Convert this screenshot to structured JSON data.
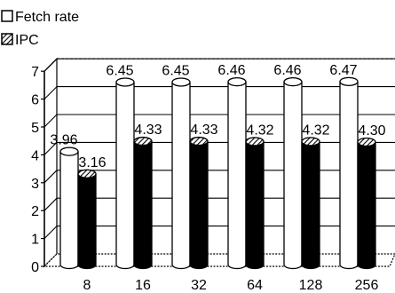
{
  "chart_data": {
    "type": "bar",
    "style": "3d-cylinder",
    "categories": [
      "8",
      "16",
      "32",
      "64",
      "128",
      "256"
    ],
    "series": [
      {
        "name": "Fetch rate",
        "values": [
          3.96,
          6.45,
          6.45,
          6.46,
          6.46,
          6.47
        ],
        "labels": [
          "3.96",
          "6.45",
          "6.45",
          "6.46",
          "6.46",
          "6.47"
        ],
        "fill": "#ffffff",
        "pattern": "none"
      },
      {
        "name": "IPC",
        "values": [
          3.16,
          4.33,
          4.33,
          4.32,
          4.32,
          4.3
        ],
        "labels": [
          "3.16",
          "4.33",
          "4.33",
          "4.32",
          "4.32",
          "4.30"
        ],
        "fill": "#000000",
        "pattern": "diagonal-hatch"
      }
    ],
    "y_ticks": [
      "0",
      "1",
      "2",
      "3",
      "4",
      "5",
      "6",
      "7"
    ],
    "ylim": [
      0,
      7
    ],
    "grid": true,
    "legend_position": "top-left",
    "title": "",
    "xlabel": "",
    "ylabel": ""
  }
}
